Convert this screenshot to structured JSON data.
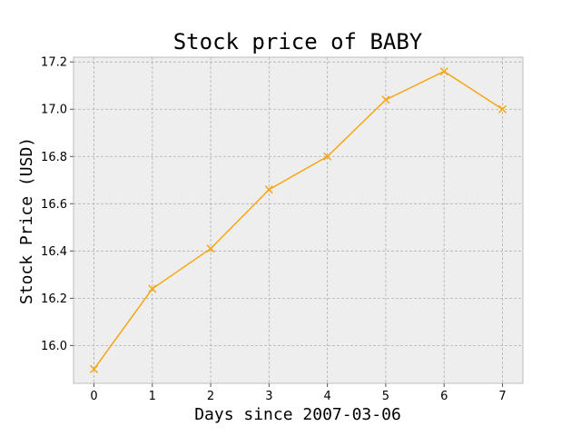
{
  "chart_data": {
    "type": "line",
    "title": "Stock price of BABY",
    "xlabel": "Days since 2007-03-06",
    "ylabel": "Stock Price (USD)",
    "x": [
      0,
      1,
      2,
      3,
      4,
      5,
      6,
      7
    ],
    "series": [
      {
        "values": [
          15.9,
          16.24,
          16.41,
          16.66,
          16.8,
          17.04,
          17.16,
          17.0
        ],
        "color": "#f5a614",
        "marker": "x"
      }
    ],
    "xlim": [
      -0.35,
      7.35
    ],
    "ylim": [
      15.84,
      17.22
    ],
    "xticks": [
      "0",
      "1",
      "2",
      "3",
      "4",
      "5",
      "6",
      "7"
    ],
    "yticks": [
      "16.0",
      "16.2",
      "16.4",
      "16.6",
      "16.8",
      "17.0",
      "17.2"
    ],
    "grid": true,
    "background": "#eeeeee"
  }
}
